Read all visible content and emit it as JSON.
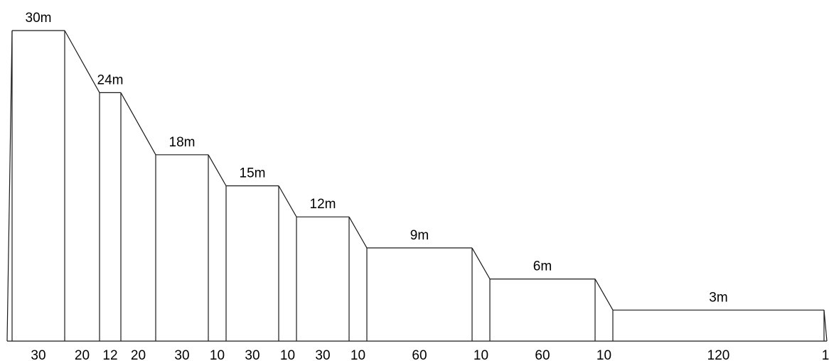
{
  "diagram": {
    "kind": "stepped elevation profile",
    "line_color": "#1a1a1a",
    "background": "#ffffff",
    "sections": [
      {
        "type": "slope",
        "length": null,
        "length_label": "",
        "height_start": 0,
        "height_end": 30
      },
      {
        "type": "flat",
        "length": 30,
        "length_label": "30",
        "height": 30,
        "height_label": "30m"
      },
      {
        "type": "slope",
        "length": 20,
        "length_label": "20",
        "height_start": 30,
        "height_end": 24
      },
      {
        "type": "flat",
        "length": 12,
        "length_label": "12",
        "height": 24,
        "height_label": "24m"
      },
      {
        "type": "slope",
        "length": 20,
        "length_label": "20",
        "height_start": 24,
        "height_end": 18
      },
      {
        "type": "flat",
        "length": 30,
        "length_label": "30",
        "height": 18,
        "height_label": "18m"
      },
      {
        "type": "slope",
        "length": 10,
        "length_label": "10",
        "height_start": 18,
        "height_end": 15
      },
      {
        "type": "flat",
        "length": 30,
        "length_label": "30",
        "height": 15,
        "height_label": "15m"
      },
      {
        "type": "slope",
        "length": 10,
        "length_label": "10",
        "height_start": 15,
        "height_end": 12
      },
      {
        "type": "flat",
        "length": 30,
        "length_label": "30",
        "height": 12,
        "height_label": "12m"
      },
      {
        "type": "slope",
        "length": 10,
        "length_label": "10",
        "height_start": 12,
        "height_end": 9
      },
      {
        "type": "flat",
        "length": 60,
        "length_label": "60",
        "height": 9,
        "height_label": "9m"
      },
      {
        "type": "slope",
        "length": 10,
        "length_label": "10",
        "height_start": 9,
        "height_end": 6
      },
      {
        "type": "flat",
        "length": 60,
        "length_label": "60",
        "height": 6,
        "height_label": "6m"
      },
      {
        "type": "slope",
        "length": 10,
        "length_label": "10",
        "height_start": 6,
        "height_end": 3
      },
      {
        "type": "flat",
        "length": 120,
        "length_label": "120",
        "height": 3,
        "height_label": "3m"
      },
      {
        "type": "slope",
        "length": 1,
        "length_label": "1",
        "height_start": 3,
        "height_end": 0
      }
    ]
  }
}
